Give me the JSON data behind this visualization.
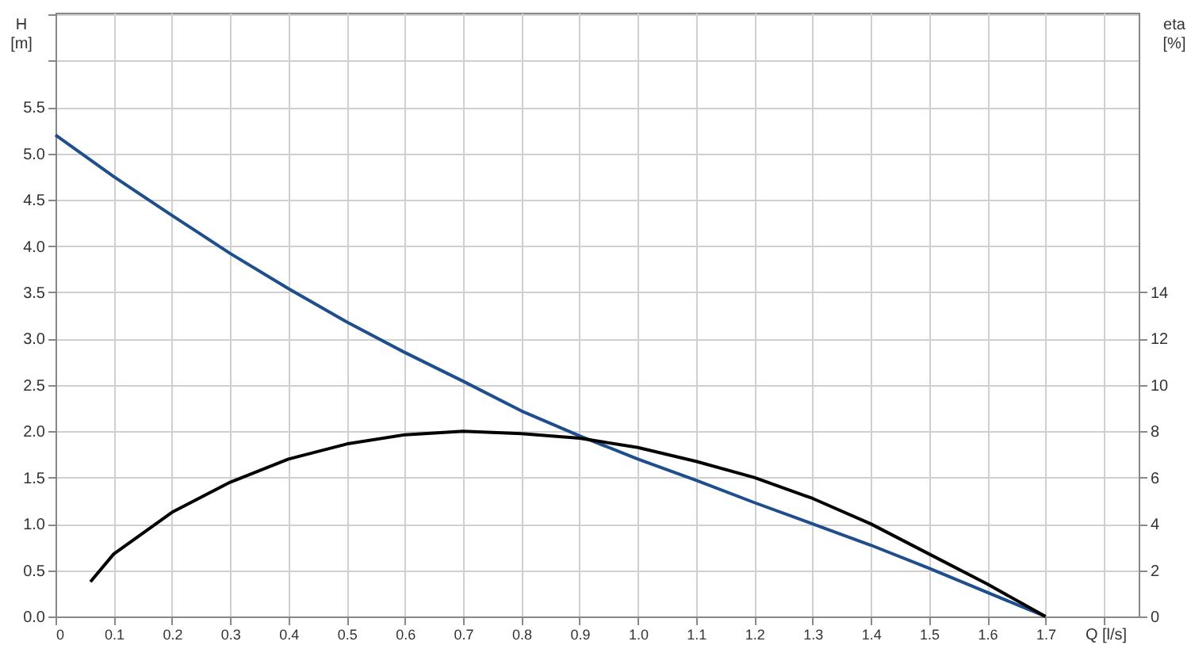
{
  "chart_data": {
    "type": "line",
    "xlabel": "Q [l/s]",
    "ylabel": "H [m]",
    "y2label": "eta [%]",
    "x": [
      0,
      0.1,
      0.2,
      0.3,
      0.4,
      0.5,
      0.6,
      0.7,
      0.8,
      0.9,
      1.0,
      1.1,
      1.2,
      1.3,
      1.4,
      1.5,
      1.6,
      1.7
    ],
    "series": [
      {
        "color": "#1f4e8c",
        "values": [
          5.2,
          4.75,
          4.33,
          3.92,
          3.54,
          3.18,
          2.85,
          2.54,
          2.22,
          1.95,
          1.7,
          1.47,
          1.23,
          1.0,
          0.77,
          0.52,
          0.26,
          0
        ]
      },
      {
        "color": "#000000",
        "axis": "y2",
        "x": [
          0.06,
          0.1,
          0.2,
          0.3,
          0.4,
          0.5,
          0.6,
          0.7,
          0.8,
          0.9,
          1.0,
          1.1,
          1.2,
          1.3,
          1.4,
          1.5,
          1.6,
          1.7
        ],
        "values": [
          1.5,
          2.7,
          4.5,
          5.8,
          6.8,
          7.45,
          7.85,
          8.0,
          7.9,
          7.7,
          7.3,
          6.7,
          6.0,
          5.1,
          4.0,
          2.7,
          1.4,
          0
        ]
      }
    ],
    "xlim": [
      0,
      1.86
    ],
    "xticks": [
      0,
      0.1,
      0.2,
      0.3,
      0.4,
      0.5,
      0.6,
      0.7,
      0.8,
      0.9,
      {
        "value": 1,
        "label": "1.0"
      },
      1.1,
      1.2,
      1.3,
      1.4,
      1.5,
      1.6,
      1.7,
      {
        "value": 1.8,
        "label": null
      }
    ],
    "ylim": [
      0,
      6.52
    ],
    "yticks": [
      {
        "value": 0,
        "label": "0.0"
      },
      0.5,
      {
        "value": 1,
        "label": "1.0"
      },
      1.5,
      {
        "value": 2,
        "label": "2.0"
      },
      2.5,
      {
        "value": 3,
        "label": "3.0"
      },
      3.5,
      {
        "value": 4,
        "label": "4.0"
      },
      4.5,
      {
        "value": 5,
        "label": "5.0"
      },
      5.5,
      {
        "value": 6,
        "label": null
      },
      {
        "value": 6.5,
        "label": null
      }
    ],
    "y2lim": [
      0,
      26.08
    ],
    "y2ticks": [
      0,
      2,
      4,
      6,
      8,
      10,
      12,
      14
    ],
    "grid": true,
    "marker": "none",
    "line_style": "solid"
  }
}
